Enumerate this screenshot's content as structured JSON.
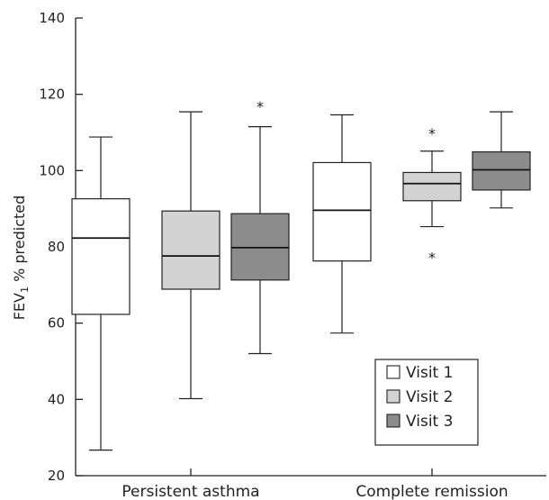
{
  "chart_data": {
    "type": "boxplot",
    "ylabel": {
      "main": "FEV",
      "sub": "1",
      "rest": " % predicted"
    },
    "ylim": [
      20,
      140
    ],
    "yticks": [
      20,
      40,
      60,
      80,
      100,
      120,
      140
    ],
    "categories": [
      "Persistent asthma",
      "Complete remission"
    ],
    "series": [
      {
        "name": "Visit 1",
        "color": "#ffffff"
      },
      {
        "name": "Visit 2",
        "color": "#d3d3d3"
      },
      {
        "name": "Visit 3",
        "color": "#8c8c8c"
      }
    ],
    "boxes": [
      {
        "category": "Persistent asthma",
        "series": "Visit 1",
        "min": 26.7,
        "q1": 62.3,
        "median": 82.3,
        "q3": 92.6,
        "max": 108.8,
        "outliers": []
      },
      {
        "category": "Persistent asthma",
        "series": "Visit 2",
        "min": 40.2,
        "q1": 68.9,
        "median": 77.6,
        "q3": 89.4,
        "max": 115.4,
        "outliers": []
      },
      {
        "category": "Persistent asthma",
        "series": "Visit 3",
        "min": 52.0,
        "q1": 71.3,
        "median": 79.8,
        "q3": 88.7,
        "max": 111.5,
        "outliers": [
          118
        ]
      },
      {
        "category": "Complete remission",
        "series": "Visit 1",
        "min": 57.4,
        "q1": 76.3,
        "median": 89.6,
        "q3": 102.1,
        "max": 114.6,
        "outliers": []
      },
      {
        "category": "Complete remission",
        "series": "Visit 2",
        "min": 85.3,
        "q1": 92.1,
        "median": 96.6,
        "q3": 99.5,
        "max": 105.1,
        "outliers": [
          111,
          78.5
        ]
      },
      {
        "category": "Complete remission",
        "series": "Visit 3",
        "min": 90.2,
        "q1": 94.9,
        "median": 100.2,
        "q3": 104.9,
        "max": 115.4,
        "outliers": []
      }
    ],
    "outlier_marker": "*",
    "legend": {
      "position": "bottom-right"
    },
    "grid": false
  }
}
